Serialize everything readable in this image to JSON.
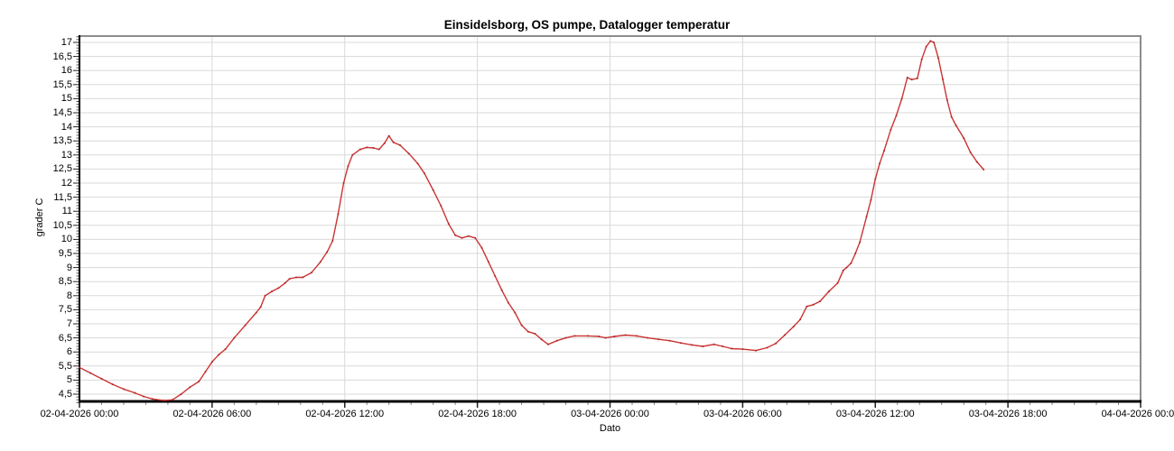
{
  "title": "Einsidelsborg, OS pumpe, Datalogger temperatur",
  "chart_data": {
    "type": "line",
    "title": "Einsidelsborg, OS pumpe, Datalogger temperatur",
    "xlabel": "Dato",
    "ylabel": "grader C",
    "grid": true,
    "legend": "none",
    "line_color": "#cc3333",
    "grid_color": "#d9d9d9",
    "frame_dark_color": "#000000",
    "frame_light_color": "#8c8c8c",
    "x_start_label": "02-04-2026 00:00",
    "x_end_label": "04-04-2026 00:00",
    "xlim_hours": [
      0,
      48
    ],
    "ylim": [
      4.244,
      17.224
    ],
    "x_major_tick_hours": 6,
    "x_minor_tick_hours": 1,
    "y_major_tick_step": 0.5,
    "y_minor_tick_step": 0.1,
    "x_tick_labels": [
      "02-04-2026 00:00",
      "02-04-2026 06:00",
      "02-04-2026 12:00",
      "02-04-2026 18:00",
      "03-04-2026 00:00",
      "03-04-2026 06:00",
      "03-04-2026 12:00",
      "03-04-2026 18:00",
      "04-04-2026 00:00"
    ],
    "y_tick_values": [
      4.5,
      5,
      5.5,
      6,
      6.5,
      7,
      7.5,
      8,
      8.5,
      9,
      9.5,
      10,
      10.5,
      11,
      11.5,
      12,
      12.5,
      13,
      13.5,
      14,
      14.5,
      15,
      15.5,
      16,
      16.5,
      17
    ],
    "y_tick_labels": [
      "4,5",
      "5",
      "5,5",
      "6",
      "6,5",
      "7",
      "7,5",
      "8",
      "8,5",
      "9",
      "9,5",
      "10",
      "10,5",
      "11",
      "11,5",
      "12",
      "12,5",
      "13",
      "13,5",
      "14",
      "14,5",
      "15",
      "15,5",
      "16",
      "16,5",
      "17"
    ],
    "series": [
      {
        "name": "Datalogger temperatur",
        "unit": "grader C",
        "points_hours_vs_degC": [
          [
            0.0,
            5.45
          ],
          [
            0.5,
            5.25
          ],
          [
            1.0,
            5.05
          ],
          [
            1.5,
            4.85
          ],
          [
            2.0,
            4.68
          ],
          [
            2.5,
            4.55
          ],
          [
            2.9,
            4.42
          ],
          [
            3.3,
            4.33
          ],
          [
            3.8,
            4.28
          ],
          [
            4.2,
            4.3
          ],
          [
            4.6,
            4.5
          ],
          [
            5.0,
            4.75
          ],
          [
            5.4,
            4.95
          ],
          [
            5.7,
            5.3
          ],
          [
            6.0,
            5.65
          ],
          [
            6.3,
            5.9
          ],
          [
            6.6,
            6.1
          ],
          [
            7.0,
            6.5
          ],
          [
            7.5,
            6.95
          ],
          [
            8.0,
            7.4
          ],
          [
            8.2,
            7.6
          ],
          [
            8.4,
            8.0
          ],
          [
            8.7,
            8.15
          ],
          [
            9.0,
            8.27
          ],
          [
            9.3,
            8.45
          ],
          [
            9.5,
            8.6
          ],
          [
            9.8,
            8.65
          ],
          [
            10.1,
            8.65
          ],
          [
            10.5,
            8.82
          ],
          [
            10.9,
            9.2
          ],
          [
            11.2,
            9.55
          ],
          [
            11.45,
            9.95
          ],
          [
            11.7,
            10.9
          ],
          [
            11.95,
            12.0
          ],
          [
            12.15,
            12.6
          ],
          [
            12.35,
            13.0
          ],
          [
            12.7,
            13.2
          ],
          [
            13.0,
            13.27
          ],
          [
            13.3,
            13.25
          ],
          [
            13.55,
            13.2
          ],
          [
            13.8,
            13.42
          ],
          [
            14.0,
            13.68
          ],
          [
            14.2,
            13.45
          ],
          [
            14.5,
            13.35
          ],
          [
            14.9,
            13.05
          ],
          [
            15.3,
            12.7
          ],
          [
            15.6,
            12.35
          ],
          [
            16.0,
            11.75
          ],
          [
            16.35,
            11.2
          ],
          [
            16.7,
            10.55
          ],
          [
            17.0,
            10.15
          ],
          [
            17.3,
            10.05
          ],
          [
            17.6,
            10.12
          ],
          [
            17.9,
            10.05
          ],
          [
            18.2,
            9.7
          ],
          [
            18.5,
            9.2
          ],
          [
            18.8,
            8.7
          ],
          [
            19.1,
            8.2
          ],
          [
            19.4,
            7.75
          ],
          [
            19.7,
            7.4
          ],
          [
            20.0,
            6.95
          ],
          [
            20.3,
            6.72
          ],
          [
            20.6,
            6.65
          ],
          [
            20.9,
            6.45
          ],
          [
            21.2,
            6.27
          ],
          [
            21.6,
            6.4
          ],
          [
            22.0,
            6.5
          ],
          [
            22.4,
            6.57
          ],
          [
            23.0,
            6.57
          ],
          [
            23.5,
            6.55
          ],
          [
            23.8,
            6.5
          ],
          [
            24.2,
            6.55
          ],
          [
            24.7,
            6.6
          ],
          [
            25.2,
            6.57
          ],
          [
            25.7,
            6.5
          ],
          [
            26.2,
            6.45
          ],
          [
            26.7,
            6.4
          ],
          [
            27.2,
            6.32
          ],
          [
            27.7,
            6.25
          ],
          [
            28.2,
            6.2
          ],
          [
            28.7,
            6.27
          ],
          [
            29.1,
            6.2
          ],
          [
            29.5,
            6.12
          ],
          [
            30.0,
            6.1
          ],
          [
            30.6,
            6.05
          ],
          [
            31.1,
            6.15
          ],
          [
            31.5,
            6.3
          ],
          [
            31.9,
            6.6
          ],
          [
            32.3,
            6.9
          ],
          [
            32.6,
            7.15
          ],
          [
            32.9,
            7.62
          ],
          [
            33.2,
            7.68
          ],
          [
            33.5,
            7.8
          ],
          [
            33.9,
            8.15
          ],
          [
            34.3,
            8.45
          ],
          [
            34.55,
            8.9
          ],
          [
            34.7,
            9.0
          ],
          [
            34.9,
            9.15
          ],
          [
            35.1,
            9.5
          ],
          [
            35.3,
            9.9
          ],
          [
            35.6,
            10.8
          ],
          [
            35.8,
            11.4
          ],
          [
            36.0,
            12.15
          ],
          [
            36.2,
            12.7
          ],
          [
            36.4,
            13.15
          ],
          [
            36.7,
            13.9
          ],
          [
            36.95,
            14.4
          ],
          [
            37.2,
            15.0
          ],
          [
            37.45,
            15.75
          ],
          [
            37.65,
            15.68
          ],
          [
            37.9,
            15.72
          ],
          [
            38.1,
            16.4
          ],
          [
            38.3,
            16.85
          ],
          [
            38.5,
            17.05
          ],
          [
            38.65,
            17.0
          ],
          [
            38.85,
            16.45
          ],
          [
            39.05,
            15.7
          ],
          [
            39.25,
            14.95
          ],
          [
            39.45,
            14.35
          ],
          [
            39.65,
            14.05
          ],
          [
            40.0,
            13.6
          ],
          [
            40.3,
            13.1
          ],
          [
            40.6,
            12.75
          ],
          [
            40.9,
            12.48
          ]
        ]
      }
    ]
  }
}
